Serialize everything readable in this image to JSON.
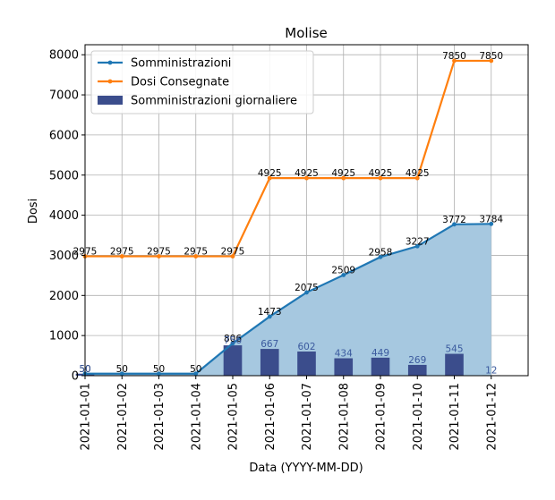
{
  "chart_data": {
    "type": "line",
    "title": "Molise",
    "xlabel": "Data (YYYY-MM-DD)",
    "ylabel": "Dosi",
    "categories": [
      "2021-01-01",
      "2021-01-02",
      "2021-01-03",
      "2021-01-04",
      "2021-01-05",
      "2021-01-06",
      "2021-01-07",
      "2021-01-08",
      "2021-01-09",
      "2021-01-10",
      "2021-01-11",
      "2021-01-12"
    ],
    "xlim": [
      "2021-01-01",
      "2021-01-13"
    ],
    "ylim": [
      0,
      8250
    ],
    "yticks": [
      0,
      1000,
      2000,
      3000,
      4000,
      5000,
      6000,
      7000,
      8000
    ],
    "grid": true,
    "legend_position": "top-left",
    "series": [
      {
        "name": "Somministrazioni",
        "kind": "line",
        "color": "#1f77b4",
        "values": [
          50,
          50,
          50,
          50,
          806,
          1473,
          2075,
          2509,
          2958,
          3227,
          3772,
          3784
        ],
        "labels": [
          "50",
          "50",
          "50",
          "50",
          "806",
          "1473",
          "2075",
          "2509",
          "2958",
          "3227",
          "3772",
          "3784"
        ]
      },
      {
        "name": "Dosi Consegnate",
        "kind": "line",
        "color": "#ff7f0e",
        "values": [
          2975,
          2975,
          2975,
          2975,
          2975,
          4925,
          4925,
          4925,
          4925,
          4925,
          7850,
          7850
        ],
        "labels": [
          "2975",
          "2975",
          "2975",
          "2975",
          "2975",
          "4925",
          "4925",
          "4925",
          "4925",
          "4925",
          "7850",
          "7850"
        ]
      },
      {
        "name": "Somministrazioni giornaliere",
        "kind": "bar",
        "color": "#3b4d8c",
        "values": [
          50,
          0,
          0,
          0,
          756,
          667,
          602,
          434,
          449,
          269,
          545,
          12
        ],
        "labels": [
          "50",
          "",
          "",
          "",
          "756",
          "667",
          "602",
          "434",
          "449",
          "269",
          "545",
          "12"
        ]
      }
    ],
    "area_fill_color": "#a6c8e0"
  }
}
